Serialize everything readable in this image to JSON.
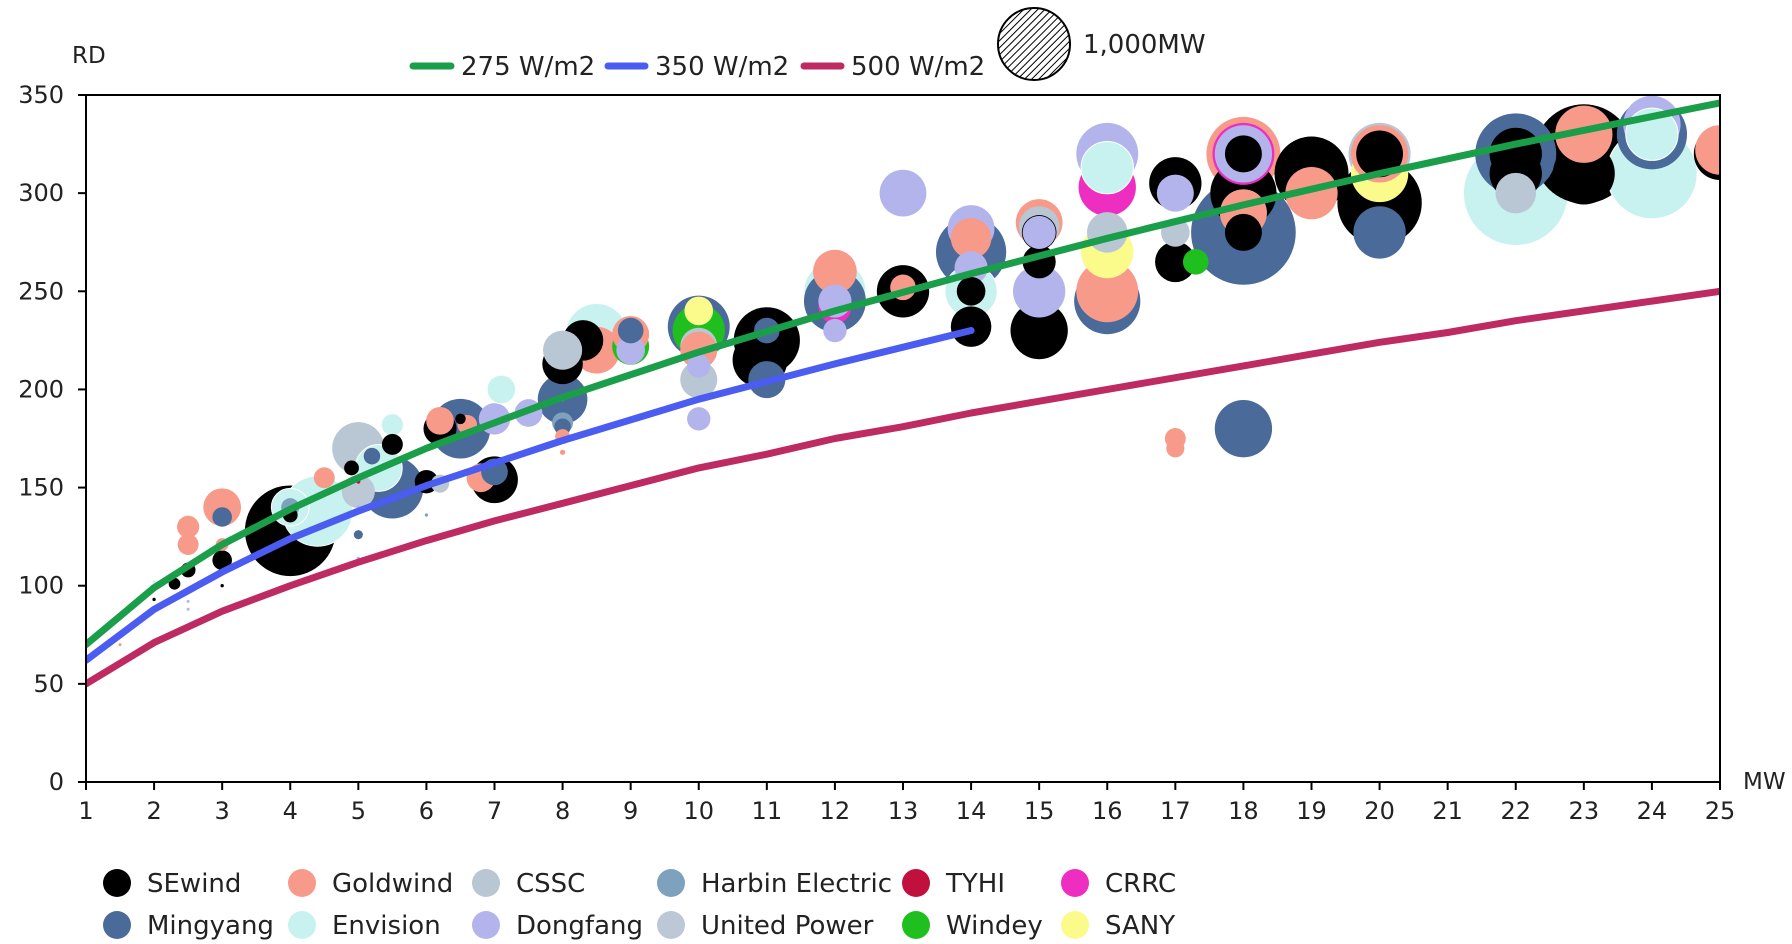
{
  "chart_data": {
    "type": "scatter",
    "ylabel": "RD",
    "xlabel": "MW",
    "xlim": [
      1,
      25
    ],
    "ylim": [
      0,
      350
    ],
    "xticks": [
      "1",
      "2",
      "3",
      "4",
      "5",
      "6",
      "7",
      "8",
      "9",
      "10",
      "11",
      "12",
      "13",
      "14",
      "15",
      "16",
      "17",
      "18",
      "19",
      "20",
      "21",
      "22",
      "23",
      "24",
      "25"
    ],
    "yticks": [
      "0",
      "50",
      "100",
      "150",
      "200",
      "250",
      "300",
      "350"
    ],
    "grid": false,
    "size_legend": {
      "label": "1,000MW",
      "value_mw": 1000
    },
    "reference_lines": [
      {
        "name": "275 W/m2",
        "color": "#1a9e4a",
        "x": [
          1,
          2,
          3,
          4,
          5,
          6,
          8,
          10,
          12,
          14,
          16,
          18,
          20,
          22,
          24,
          25
        ],
        "y": [
          70,
          99,
          121,
          139,
          155,
          170,
          196,
          219,
          240,
          259,
          277,
          294,
          310,
          325,
          339,
          346
        ]
      },
      {
        "name": "350 W/m2",
        "color": "#4b5cf0",
        "x": [
          1,
          2,
          3,
          4,
          5,
          6,
          8,
          10,
          12,
          14
        ],
        "y": [
          62,
          88,
          107,
          124,
          138,
          151,
          174,
          195,
          213,
          230
        ]
      },
      {
        "name": "500 W/m2",
        "color": "#be2a62",
        "x": [
          1,
          2,
          3,
          4,
          5,
          6,
          7,
          8,
          9,
          10,
          11,
          12,
          13,
          14,
          15,
          16,
          17,
          18,
          19,
          20,
          21,
          22,
          23,
          24,
          25
        ],
        "y": [
          50,
          71,
          87,
          100,
          112,
          123,
          133,
          142,
          151,
          160,
          167,
          175,
          181,
          188,
          194,
          200,
          206,
          212,
          218,
          224,
          229,
          235,
          240,
          245,
          250
        ]
      }
    ],
    "manufacturers": [
      {
        "name": "SEwind",
        "color": "#000000"
      },
      {
        "name": "Mingyang",
        "color": "#4a6a99"
      },
      {
        "name": "Goldwind",
        "color": "#f79a8a"
      },
      {
        "name": "Envision",
        "color": "#c8f2ef"
      },
      {
        "name": "CSSC",
        "color": "#b9c6d3"
      },
      {
        "name": "Dongfang",
        "color": "#b4b4ec"
      },
      {
        "name": "Harbin Electric",
        "color": "#7ea1bd"
      },
      {
        "name": "United Power",
        "color": "#bcc8d6"
      },
      {
        "name": "TYHI",
        "color": "#c1103e"
      },
      {
        "name": "Windey",
        "color": "#1fbf1f"
      },
      {
        "name": "CRRC",
        "color": "#ee2ec0"
      },
      {
        "name": "SANY",
        "color": "#fbfb8c"
      }
    ],
    "bubbles": [
      {
        "m": "Envision",
        "x": 1.5,
        "y": 86,
        "mw": 2
      },
      {
        "m": "Goldwind",
        "x": 1.5,
        "y": 70,
        "mw": 1
      },
      {
        "m": "Envision",
        "x": 2,
        "y": 102,
        "mw": 3
      },
      {
        "m": "SEwind",
        "x": 2,
        "y": 93,
        "mw": 2
      },
      {
        "m": "SEwind",
        "x": 2.3,
        "y": 101,
        "mw": 25
      },
      {
        "m": "Goldwind",
        "x": 2.5,
        "y": 130,
        "mw": 90
      },
      {
        "m": "Goldwind",
        "x": 2.5,
        "y": 121,
        "mw": 80
      },
      {
        "m": "SEwind",
        "x": 2.5,
        "y": 108,
        "mw": 40
      },
      {
        "m": "Dongfang",
        "x": 2.5,
        "y": 92,
        "mw": 1
      },
      {
        "m": "Dongfang",
        "x": 2.5,
        "y": 88,
        "mw": 1
      },
      {
        "m": "Goldwind",
        "x": 3,
        "y": 140,
        "mw": 260
      },
      {
        "m": "Mingyang",
        "x": 3,
        "y": 135,
        "mw": 70
      },
      {
        "m": "Goldwind",
        "x": 3,
        "y": 121,
        "mw": 30
      },
      {
        "m": "SEwind",
        "x": 3,
        "y": 113,
        "mw": 70
      },
      {
        "m": "SEwind",
        "x": 3,
        "y": 100,
        "mw": 2
      },
      {
        "m": "SEwind",
        "x": 3.6,
        "y": 120,
        "mw": 40
      },
      {
        "m": "SEwind",
        "x": 4,
        "y": 128,
        "mw": 1500
      },
      {
        "m": "Envision",
        "x": 4.4,
        "y": 138,
        "mw": 900
      },
      {
        "m": "Envision",
        "x": 4,
        "y": 140,
        "mw": 260
      },
      {
        "m": "Harbin Electric",
        "x": 4,
        "y": 140,
        "mw": 60
      },
      {
        "m": "SEwind",
        "x": 4,
        "y": 136,
        "mw": 40
      },
      {
        "m": "Goldwind",
        "x": 4.5,
        "y": 155,
        "mw": 80
      },
      {
        "m": "Mingyang",
        "x": 5.5,
        "y": 150,
        "mw": 700
      },
      {
        "m": "CSSC",
        "x": 5,
        "y": 170,
        "mw": 500
      },
      {
        "m": "Envision",
        "x": 5.3,
        "y": 160,
        "mw": 400
      },
      {
        "m": "United Power",
        "x": 5,
        "y": 148,
        "mw": 200
      },
      {
        "m": "SEwind",
        "x": 4.9,
        "y": 160,
        "mw": 40
      },
      {
        "m": "Mingyang",
        "x": 5.2,
        "y": 166,
        "mw": 50
      },
      {
        "m": "SEwind",
        "x": 5.5,
        "y": 172,
        "mw": 80
      },
      {
        "m": "Envision",
        "x": 5.5,
        "y": 182,
        "mw": 90
      },
      {
        "m": "TYHI",
        "x": 5,
        "y": 153,
        "mw": 3
      },
      {
        "m": "Dongfang",
        "x": 5,
        "y": 140,
        "mw": 3
      },
      {
        "m": "Mingyang",
        "x": 5,
        "y": 126,
        "mw": 15
      },
      {
        "m": "Dongfang",
        "x": 5,
        "y": 114,
        "mw": 2
      },
      {
        "m": "Mingyang",
        "x": 6.5,
        "y": 180,
        "mw": 650
      },
      {
        "m": "SEwind",
        "x": 6.2,
        "y": 180,
        "mw": 200
      },
      {
        "m": "Goldwind",
        "x": 6.2,
        "y": 184,
        "mw": 140
      },
      {
        "m": "Goldwind",
        "x": 6.6,
        "y": 182,
        "mw": 70
      },
      {
        "m": "SEwind",
        "x": 6.5,
        "y": 185,
        "mw": 20
      },
      {
        "m": "SEwind",
        "x": 6,
        "y": 153,
        "mw": 100
      },
      {
        "m": "CSSC",
        "x": 6.2,
        "y": 152,
        "mw": 60
      },
      {
        "m": "Harbin Electric",
        "x": 6,
        "y": 136,
        "mw": 2
      },
      {
        "m": "Goldwind",
        "x": 6.8,
        "y": 155,
        "mw": 150
      },
      {
        "m": "SEwind",
        "x": 7,
        "y": 154,
        "mw": 400
      },
      {
        "m": "Mingyang",
        "x": 7,
        "y": 158,
        "mw": 130
      },
      {
        "m": "Dongfang",
        "x": 7,
        "y": 185,
        "mw": 180
      },
      {
        "m": "Envision",
        "x": 7.1,
        "y": 200,
        "mw": 150
      },
      {
        "m": "Dongfang",
        "x": 7.5,
        "y": 188,
        "mw": 140
      },
      {
        "m": "Mingyang",
        "x": 8,
        "y": 195,
        "mw": 450
      },
      {
        "m": "SEwind",
        "x": 8,
        "y": 213,
        "mw": 300
      },
      {
        "m": "Harbin Electric",
        "x": 8,
        "y": 183,
        "mw": 80
      },
      {
        "m": "Mingyang",
        "x": 8,
        "y": 181,
        "mw": 50
      },
      {
        "m": "Goldwind",
        "x": 8,
        "y": 176,
        "mw": 40
      },
      {
        "m": "Goldwind",
        "x": 8,
        "y": 168,
        "mw": 5
      },
      {
        "m": "Harbin Electric",
        "x": 8,
        "y": 195,
        "mw": 3
      },
      {
        "m": "Envision",
        "x": 8.5,
        "y": 228,
        "mw": 700
      },
      {
        "m": "SEwind",
        "x": 8.3,
        "y": 225,
        "mw": 300
      },
      {
        "m": "Goldwind",
        "x": 8.5,
        "y": 220,
        "mw": 400
      },
      {
        "m": "CSSC",
        "x": 8,
        "y": 220,
        "mw": 280
      },
      {
        "m": "Windey",
        "x": 9,
        "y": 222,
        "mw": 250
      },
      {
        "m": "Goldwind",
        "x": 9,
        "y": 228,
        "mw": 250
      },
      {
        "m": "Dongfang",
        "x": 9,
        "y": 220,
        "mw": 150
      },
      {
        "m": "Mingyang",
        "x": 9,
        "y": 230,
        "mw": 120
      },
      {
        "m": "Mingyang",
        "x": 10,
        "y": 232,
        "mw": 700
      },
      {
        "m": "Windey",
        "x": 10,
        "y": 230,
        "mw": 500
      },
      {
        "m": "CSSC",
        "x": 10,
        "y": 222,
        "mw": 250
      },
      {
        "m": "Goldwind",
        "x": 10,
        "y": 220,
        "mw": 250
      },
      {
        "m": "CSSC",
        "x": 10,
        "y": 205,
        "mw": 250
      },
      {
        "m": "Dongfang",
        "x": 10,
        "y": 212,
        "mw": 100
      },
      {
        "m": "Dongfang",
        "x": 10,
        "y": 185,
        "mw": 100
      },
      {
        "m": "SANY",
        "x": 10,
        "y": 240,
        "mw": 150
      },
      {
        "m": "SEwind",
        "x": 11,
        "y": 225,
        "mw": 800
      },
      {
        "m": "SEwind",
        "x": 10.9,
        "y": 215,
        "mw": 550
      },
      {
        "m": "Mingyang",
        "x": 11,
        "y": 205,
        "mw": 250
      },
      {
        "m": "Mingyang",
        "x": 11,
        "y": 230,
        "mw": 120
      },
      {
        "m": "Envision",
        "x": 12,
        "y": 250,
        "mw": 700
      },
      {
        "m": "Mingyang",
        "x": 12,
        "y": 245,
        "mw": 700
      },
      {
        "m": "CRRC",
        "x": 12,
        "y": 242,
        "mw": 200
      },
      {
        "m": "Goldwind",
        "x": 12,
        "y": 260,
        "mw": 350
      },
      {
        "m": "Dongfang",
        "x": 12,
        "y": 245,
        "mw": 200
      },
      {
        "m": "Dongfang",
        "x": 12,
        "y": 230,
        "mw": 100
      },
      {
        "m": "SEwind",
        "x": 13,
        "y": 250,
        "mw": 500
      },
      {
        "m": "Goldwind",
        "x": 13,
        "y": 252,
        "mw": 120
      },
      {
        "m": "Dongfang",
        "x": 13,
        "y": 300,
        "mw": 400
      },
      {
        "m": "Mingyang",
        "x": 14,
        "y": 270,
        "mw": 900
      },
      {
        "m": "Envision",
        "x": 14,
        "y": 250,
        "mw": 500
      },
      {
        "m": "SEwind",
        "x": 14,
        "y": 232,
        "mw": 300
      },
      {
        "m": "Dongfang",
        "x": 14,
        "y": 282,
        "mw": 400
      },
      {
        "m": "Goldwind",
        "x": 14,
        "y": 277,
        "mw": 300
      },
      {
        "m": "SEwind",
        "x": 14,
        "y": 250,
        "mw": 150
      },
      {
        "m": "Dongfang",
        "x": 14,
        "y": 262,
        "mw": 200
      },
      {
        "m": "SEwind",
        "x": 15,
        "y": 230,
        "mw": 600
      },
      {
        "m": "Dongfang",
        "x": 15,
        "y": 250,
        "mw": 500
      },
      {
        "m": "Goldwind",
        "x": 15,
        "y": 285,
        "mw": 400
      },
      {
        "m": "SEwind",
        "x": 15,
        "y": 265,
        "mw": 200
      },
      {
        "m": "CSSC",
        "x": 15,
        "y": 283,
        "mw": 300
      },
      {
        "m": "SEwind",
        "x": 15,
        "y": 280,
        "mw": 220
      },
      {
        "m": "Dongfang",
        "x": 15,
        "y": 280,
        "mw": 200
      },
      {
        "m": "Mingyang",
        "x": 16,
        "y": 245,
        "mw": 800
      },
      {
        "m": "Goldwind",
        "x": 16,
        "y": 250,
        "mw": 700
      },
      {
        "m": "SANY",
        "x": 16,
        "y": 270,
        "mw": 500
      },
      {
        "m": "CRRC",
        "x": 16,
        "y": 303,
        "mw": 600
      },
      {
        "m": "Dongfang",
        "x": 16,
        "y": 320,
        "mw": 700
      },
      {
        "m": "Envision",
        "x": 16,
        "y": 313,
        "mw": 500
      },
      {
        "m": "CSSC",
        "x": 16,
        "y": 280,
        "mw": 300
      },
      {
        "m": "SEwind",
        "x": 17,
        "y": 265,
        "mw": 300
      },
      {
        "m": "Windey",
        "x": 17.3,
        "y": 265,
        "mw": 120
      },
      {
        "m": "SEwind",
        "x": 17,
        "y": 305,
        "mw": 500
      },
      {
        "m": "Dongfang",
        "x": 17,
        "y": 300,
        "mw": 250
      },
      {
        "m": "CSSC",
        "x": 17,
        "y": 280,
        "mw": 150
      },
      {
        "m": "Goldwind",
        "x": 17,
        "y": 175,
        "mw": 80
      },
      {
        "m": "Goldwind",
        "x": 17,
        "y": 170,
        "mw": 60
      },
      {
        "m": "Mingyang",
        "x": 18,
        "y": 280,
        "mw": 2000
      },
      {
        "m": "Mingyang",
        "x": 18,
        "y": 180,
        "mw": 600
      },
      {
        "m": "Goldwind",
        "x": 18,
        "y": 320,
        "mw": 1000
      },
      {
        "m": "SEwind",
        "x": 18,
        "y": 300,
        "mw": 800
      },
      {
        "m": "CRRC",
        "x": 18,
        "y": 320,
        "mw": 700
      },
      {
        "m": "Dongfang",
        "x": 18,
        "y": 320,
        "mw": 600
      },
      {
        "m": "SANY",
        "x": 18,
        "y": 290,
        "mw": 400
      },
      {
        "m": "Goldwind",
        "x": 18,
        "y": 290,
        "mw": 400
      },
      {
        "m": "SEwind",
        "x": 18,
        "y": 320,
        "mw": 250
      },
      {
        "m": "SEwind",
        "x": 18,
        "y": 280,
        "mw": 250
      },
      {
        "m": "SEwind",
        "x": 19,
        "y": 310,
        "mw": 1000
      },
      {
        "m": "Goldwind",
        "x": 19,
        "y": 300,
        "mw": 500
      },
      {
        "m": "SEwind",
        "x": 20,
        "y": 295,
        "mw": 1300
      },
      {
        "m": "SANY",
        "x": 20,
        "y": 310,
        "mw": 600
      },
      {
        "m": "Dongfang",
        "x": 20,
        "y": 320,
        "mw": 700
      },
      {
        "m": "CSSC",
        "x": 20,
        "y": 320,
        "mw": 700
      },
      {
        "m": "Goldwind",
        "x": 20,
        "y": 320,
        "mw": 600
      },
      {
        "m": "Mingyang",
        "x": 20,
        "y": 280,
        "mw": 500
      },
      {
        "m": "SEwind",
        "x": 20,
        "y": 320,
        "mw": 400
      },
      {
        "m": "Envision",
        "x": 22,
        "y": 300,
        "mw": 2000
      },
      {
        "m": "Mingyang",
        "x": 22,
        "y": 320,
        "mw": 1200
      },
      {
        "m": "CSSC",
        "x": 22,
        "y": 300,
        "mw": 300
      },
      {
        "m": "SEwind",
        "x": 22,
        "y": 320,
        "mw": 500
      },
      {
        "m": "SEwind",
        "x": 22,
        "y": 310,
        "mw": 500
      },
      {
        "m": "SEwind",
        "x": 23,
        "y": 320,
        "mw": 1800
      },
      {
        "m": "Goldwind",
        "x": 23,
        "y": 330,
        "mw": 600
      },
      {
        "m": "SEwind",
        "x": 23,
        "y": 310,
        "mw": 700
      },
      {
        "m": "Envision",
        "x": 24,
        "y": 310,
        "mw": 1500
      },
      {
        "m": "Mingyang",
        "x": 24,
        "y": 330,
        "mw": 900
      },
      {
        "m": "Dongfang",
        "x": 24,
        "y": 335,
        "mw": 600
      },
      {
        "m": "Envision",
        "x": 24,
        "y": 330,
        "mw": 500
      },
      {
        "m": "SEwind",
        "x": 25,
        "y": 320,
        "mw": 500
      },
      {
        "m": "Goldwind",
        "x": 25,
        "y": 322,
        "mw": 450
      }
    ]
  }
}
